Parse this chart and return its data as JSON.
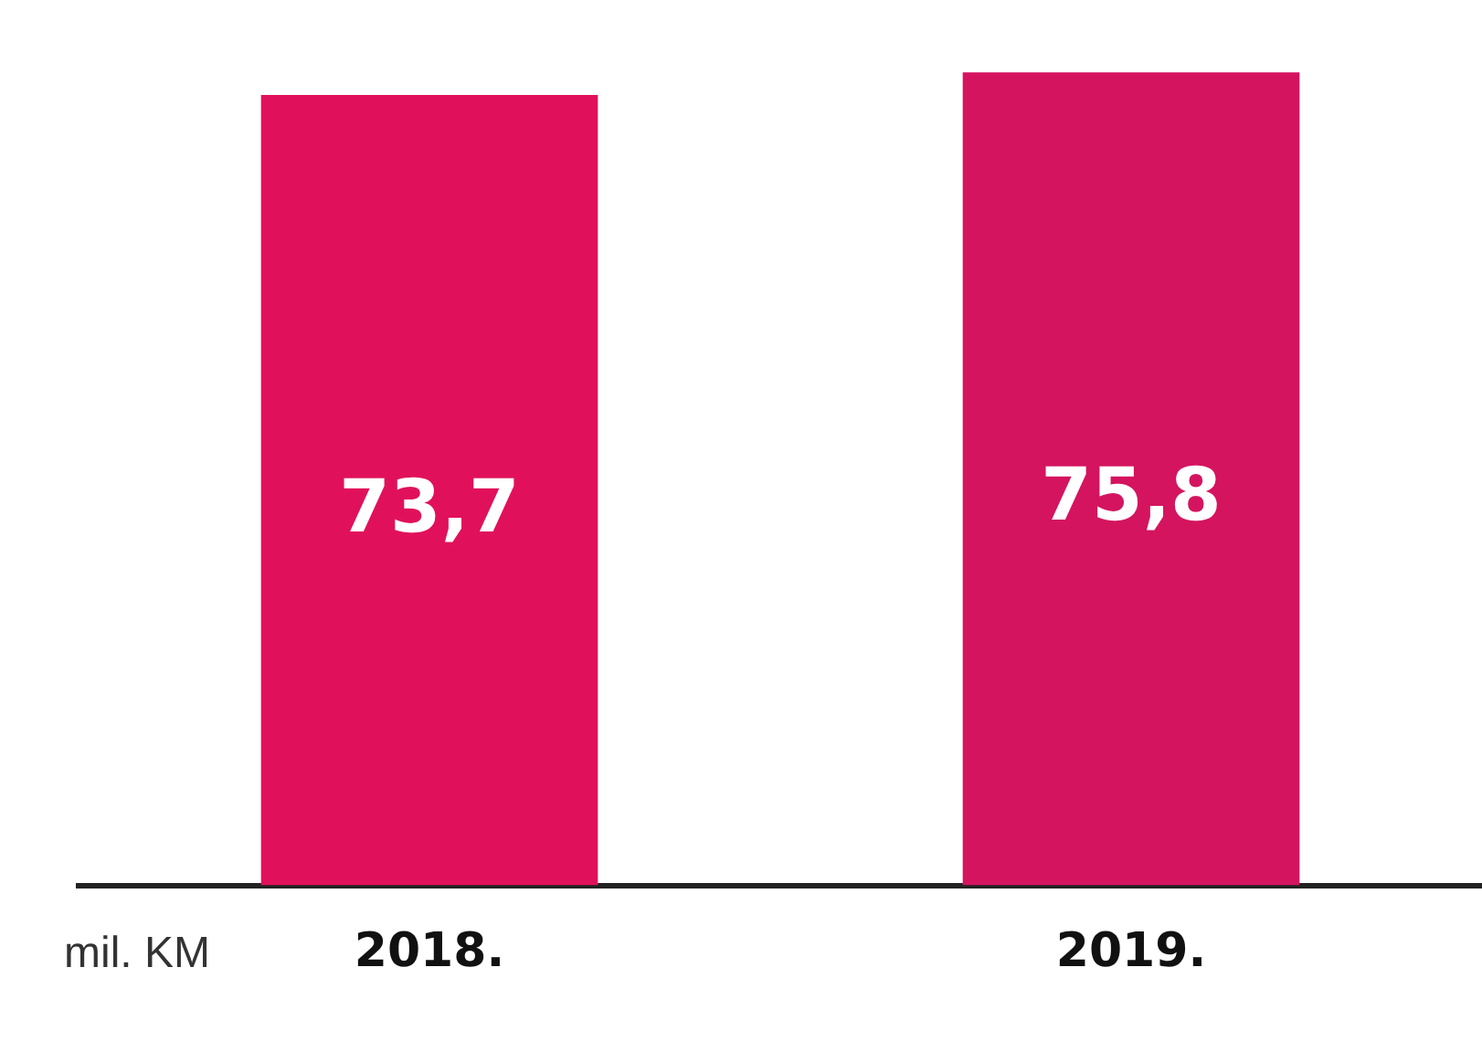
{
  "chart_data": {
    "type": "bar",
    "annotations": [
      "mil. KM"
    ],
    "categories": [
      "2018.",
      "2019."
    ],
    "values": [
      73.7,
      75.8
    ],
    "value_labels": [
      "73,7",
      "75,8"
    ],
    "colors": [
      "#e0115a",
      "#d4145f"
    ],
    "grid": false,
    "legend": false
  }
}
